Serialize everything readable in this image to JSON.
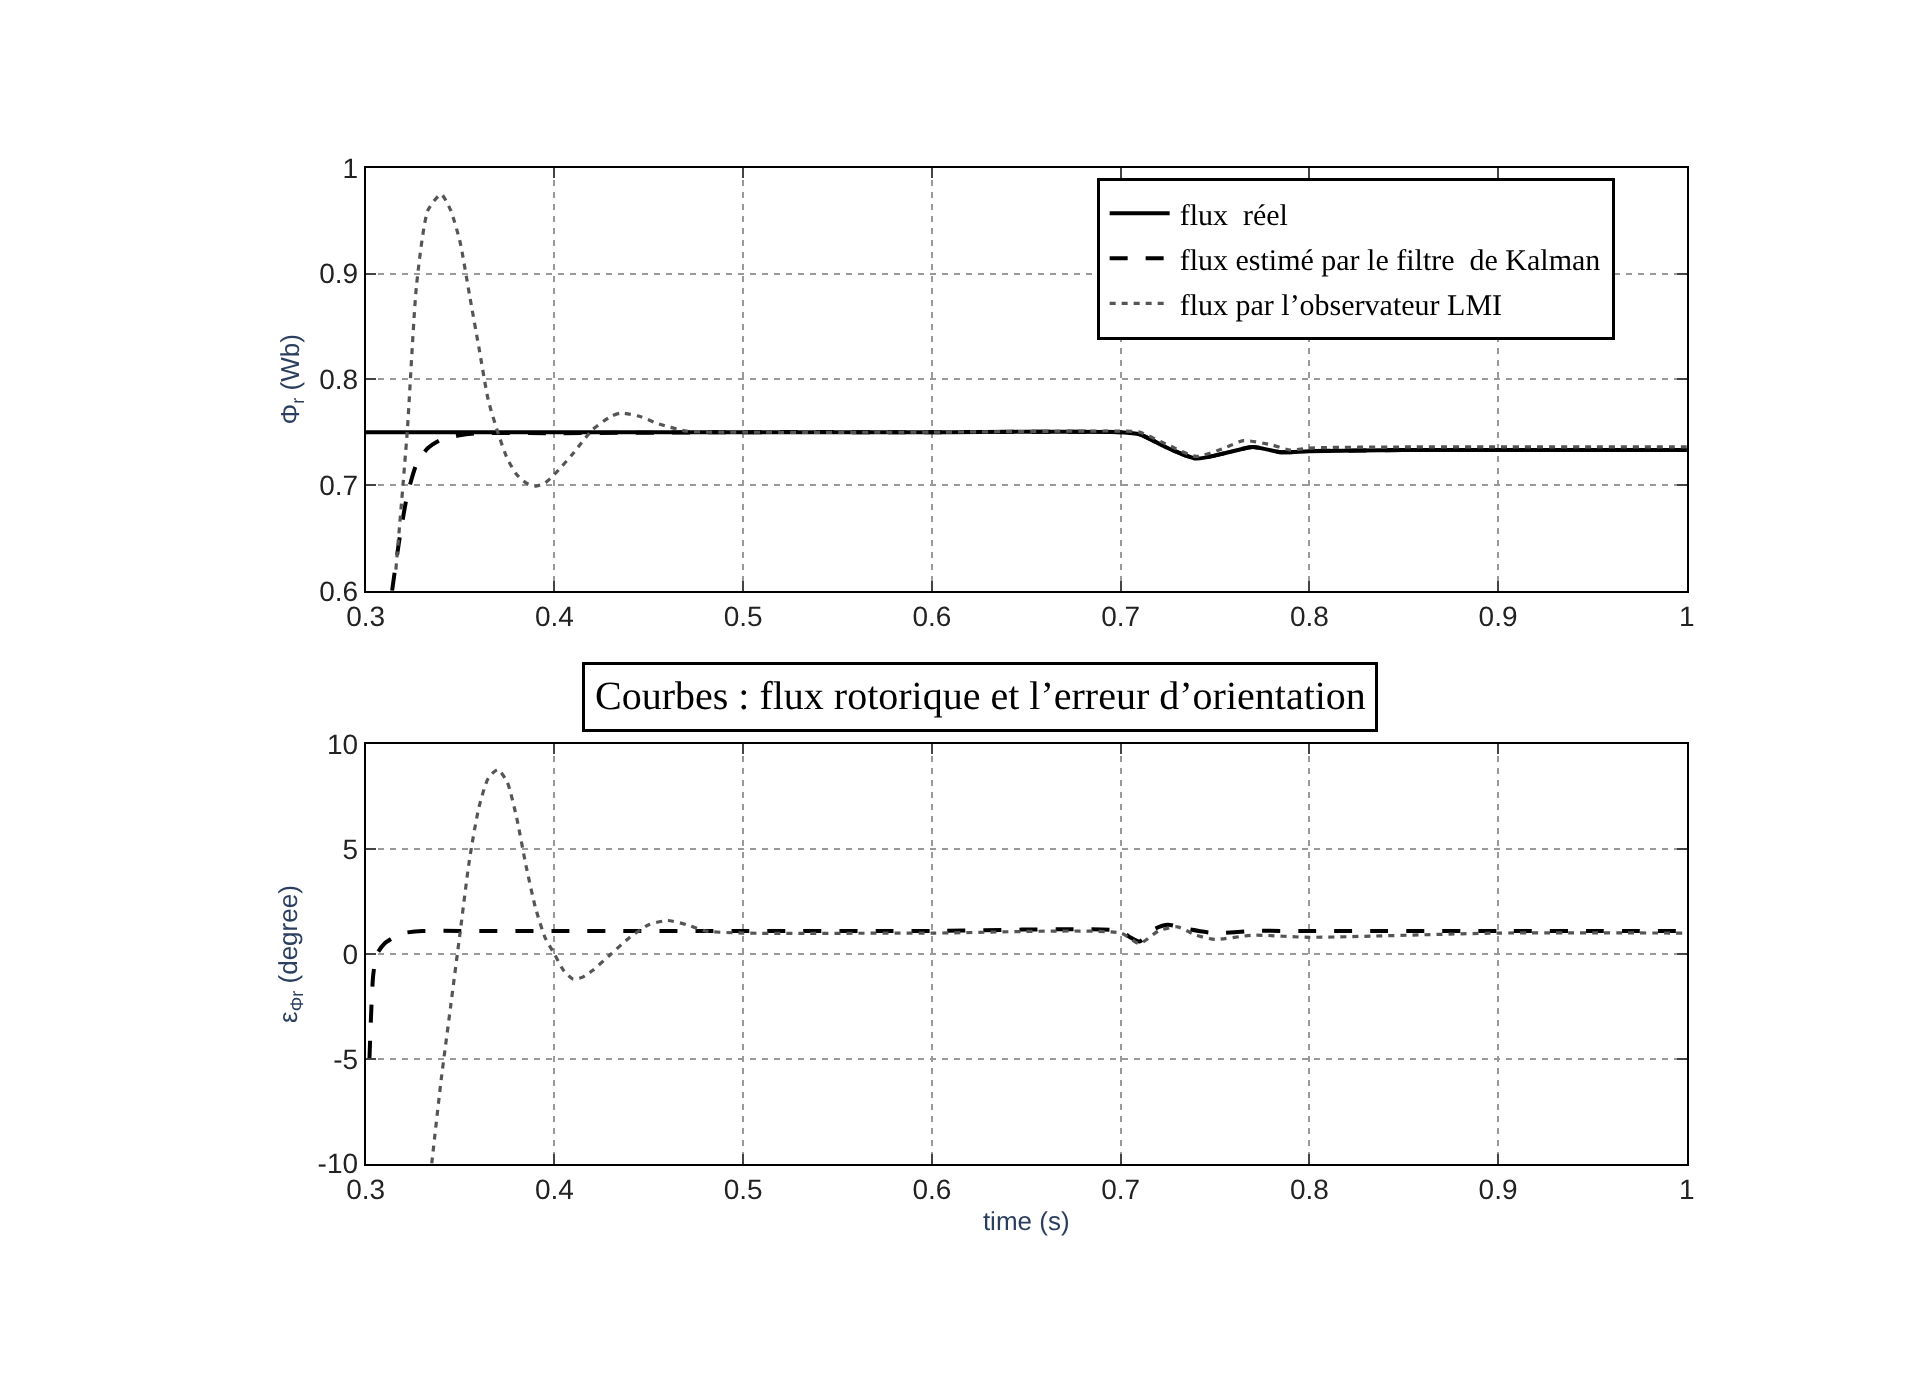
{
  "chart_data": [
    {
      "type": "line",
      "ylabel": "Φ$_{r}$ (Wb)",
      "xlim": [
        0.3,
        1
      ],
      "xticks": [
        0.3,
        0.4,
        0.5,
        0.6,
        0.7,
        0.8,
        0.9,
        1
      ],
      "ylim": [
        0.6,
        1
      ],
      "yticks": [
        0.6,
        0.7,
        0.8,
        0.9,
        1
      ],
      "grid": true,
      "legend": "top right",
      "series": [
        {
          "name": "flux  réel",
          "color": "#000000",
          "line_style": "solid",
          "x": [
            0.3,
            0.35,
            0.4,
            0.5,
            0.6,
            0.7,
            0.71,
            0.725,
            0.74,
            0.755,
            0.77,
            0.785,
            0.8,
            0.85,
            0.9,
            0.95,
            1
          ],
          "values": [
            0.75,
            0.75,
            0.75,
            0.75,
            0.75,
            0.75,
            0.748,
            0.735,
            0.725,
            0.73,
            0.736,
            0.731,
            0.732,
            0.733,
            0.733,
            0.733,
            0.733
          ]
        },
        {
          "name": "flux estimé par le filtre  de Kalman",
          "color": "#000000",
          "line_style": "dashed",
          "x": [
            0.314,
            0.318,
            0.322,
            0.327,
            0.333,
            0.34,
            0.35,
            0.36,
            0.4,
            0.5,
            0.6,
            0.7,
            0.71,
            0.725,
            0.74,
            0.755,
            0.77,
            0.785,
            0.8,
            0.85,
            0.9,
            0.95,
            1
          ],
          "values": [
            0.6,
            0.65,
            0.69,
            0.72,
            0.735,
            0.743,
            0.747,
            0.749,
            0.749,
            0.75,
            0.75,
            0.75,
            0.748,
            0.735,
            0.725,
            0.73,
            0.736,
            0.731,
            0.732,
            0.733,
            0.733,
            0.733,
            0.733
          ]
        },
        {
          "name": "flux par l’observateur LMI",
          "color": "#555555",
          "line_style": "dotted",
          "x": [
            0.316,
            0.322,
            0.327,
            0.333,
            0.34,
            0.345,
            0.35,
            0.355,
            0.36,
            0.365,
            0.37,
            0.375,
            0.38,
            0.385,
            0.39,
            0.395,
            0.4,
            0.41,
            0.42,
            0.43,
            0.435,
            0.445,
            0.455,
            0.47,
            0.5,
            0.6,
            0.7,
            0.71,
            0.725,
            0.74,
            0.755,
            0.765,
            0.78,
            0.79,
            0.8,
            0.85,
            0.9,
            0.95,
            1
          ],
          "values": [
            0.62,
            0.75,
            0.89,
            0.96,
            0.975,
            0.96,
            0.93,
            0.88,
            0.83,
            0.78,
            0.75,
            0.725,
            0.71,
            0.702,
            0.699,
            0.702,
            0.71,
            0.73,
            0.752,
            0.765,
            0.768,
            0.765,
            0.758,
            0.751,
            0.75,
            0.75,
            0.751,
            0.75,
            0.738,
            0.727,
            0.735,
            0.742,
            0.738,
            0.733,
            0.735,
            0.736,
            0.736,
            0.736,
            0.736
          ]
        }
      ]
    },
    {
      "type": "line",
      "title": "Courbes : flux rotorique et l’erreur d’orientation",
      "xlabel": "time (s)",
      "ylabel": "ε$_{Φr}$ (degree)",
      "xlim": [
        0.3,
        1
      ],
      "xticks": [
        0.3,
        0.4,
        0.5,
        0.6,
        0.7,
        0.8,
        0.9,
        1
      ],
      "ylim": [
        -10,
        10
      ],
      "yticks": [
        -10,
        -5,
        0,
        5,
        10
      ],
      "grid": true,
      "legend": false,
      "series": [
        {
          "color": "#000000",
          "line_style": "dashed",
          "x": [
            0.302,
            0.304,
            0.306,
            0.31,
            0.315,
            0.32,
            0.33,
            0.35,
            0.4,
            0.5,
            0.6,
            0.7,
            0.705,
            0.71,
            0.718,
            0.725,
            0.735,
            0.75,
            0.77,
            0.8,
            0.9,
            1
          ],
          "values": [
            -5,
            -1,
            0,
            0.5,
            0.8,
            1.0,
            1.1,
            1.1,
            1.1,
            1.1,
            1.1,
            1.1,
            0.8,
            0.6,
            1.2,
            1.4,
            1.2,
            1.0,
            1.1,
            1.1,
            1.1,
            1.1
          ]
        },
        {
          "color": "#555555",
          "line_style": "dotted",
          "x": [
            0.335,
            0.34,
            0.345,
            0.35,
            0.355,
            0.36,
            0.365,
            0.37,
            0.375,
            0.38,
            0.385,
            0.39,
            0.395,
            0.4,
            0.405,
            0.41,
            0.415,
            0.42,
            0.43,
            0.44,
            0.45,
            0.46,
            0.47,
            0.48,
            0.5,
            0.6,
            0.7,
            0.71,
            0.72,
            0.73,
            0.74,
            0.75,
            0.77,
            0.8,
            0.9,
            1
          ],
          "values": [
            -10,
            -6,
            -2.5,
            1,
            4.5,
            7,
            8.4,
            8.8,
            8.2,
            6.5,
            4.2,
            2.2,
            0.8,
            0,
            -0.8,
            -1.2,
            -1.1,
            -0.8,
            0,
            0.8,
            1.4,
            1.6,
            1.4,
            1.1,
            1.0,
            1.0,
            1.0,
            0.5,
            1.1,
            1.3,
            0.9,
            0.7,
            0.9,
            0.8,
            1.0,
            1.0
          ]
        }
      ]
    }
  ]
}
